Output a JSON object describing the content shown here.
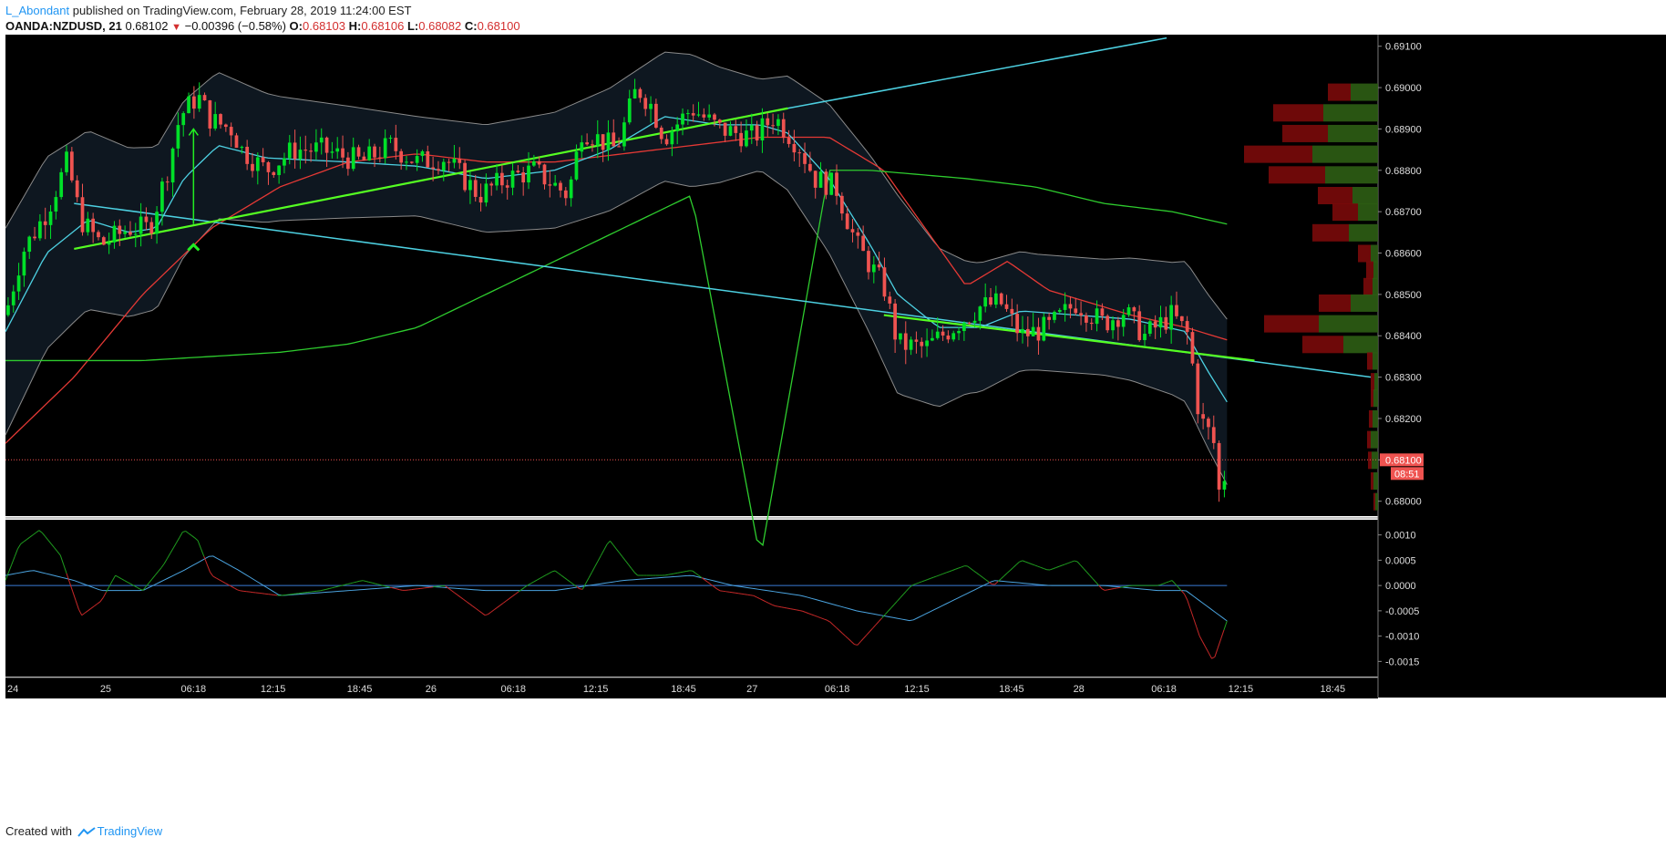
{
  "header": {
    "author": "L_Abondant",
    "published": "published on TradingView.com, February 28, 2019 11:24:00 EST",
    "symbol": "OANDA:NZDUSD, 21",
    "last": "0.68102",
    "change": "−0.00396 (−0.58%)",
    "o_label": "O:",
    "o": "0.68103",
    "h_label": "H:",
    "h": "0.68106",
    "l_label": "L:",
    "l": "0.68082",
    "c_label": "C:",
    "c": "0.68100"
  },
  "footer": {
    "created_with": "Created with",
    "brand": "TradingView"
  },
  "colors": {
    "up": "#00e028",
    "down": "#ef5350",
    "ma_red": "#e53935",
    "ma_green": "#2ecc2e",
    "ma_cyan": "#4dd0e1",
    "trend_green": "#55ff22",
    "trend_cyan": "#4dd0e1",
    "macd_blue": "#4aa3df"
  },
  "chart_data": {
    "type": "candlestick",
    "price_axis": {
      "ticks": [
        0.691,
        0.69,
        0.689,
        0.688,
        0.687,
        0.686,
        0.685,
        0.684,
        0.683,
        0.682,
        0.681,
        0.68
      ],
      "tick_labels": [
        "0.69100",
        "0.69000",
        "0.68900",
        "0.68800",
        "0.68700",
        "0.68600",
        "0.68500",
        "0.68400",
        "0.68300",
        "0.68200",
        "0.68100",
        "0.68000"
      ],
      "ylim": [
        0.67964,
        0.69128
      ]
    },
    "time_axis": {
      "labels": [
        "24",
        "25",
        "06:18",
        "12:15",
        "18:45",
        "26",
        "06:18",
        "12:15",
        "18:45",
        "27",
        "06:18",
        "12:15",
        "18:45",
        "28",
        "06:18",
        "12:15",
        "18:45"
      ],
      "label_positions": [
        0,
        0.073,
        0.137,
        0.195,
        0.258,
        0.31,
        0.37,
        0.43,
        0.494,
        0.544,
        0.606,
        0.664,
        0.733,
        0.782,
        0.844,
        0.9,
        0.967
      ]
    },
    "last_price": {
      "value": 0.681,
      "label": "0.68100",
      "countdown": "08:51"
    },
    "anchors": [
      [
        0.0,
        0.6845
      ],
      [
        0.012,
        0.686
      ],
      [
        0.03,
        0.687
      ],
      [
        0.045,
        0.6882
      ],
      [
        0.055,
        0.6868
      ],
      [
        0.07,
        0.6862
      ],
      [
        0.09,
        0.6866
      ],
      [
        0.105,
        0.6866
      ],
      [
        0.118,
        0.688
      ],
      [
        0.127,
        0.6893
      ],
      [
        0.14,
        0.6898
      ],
      [
        0.15,
        0.6892
      ],
      [
        0.165,
        0.689
      ],
      [
        0.172,
        0.6885
      ],
      [
        0.19,
        0.688
      ],
      [
        0.21,
        0.6885
      ],
      [
        0.23,
        0.6885
      ],
      [
        0.26,
        0.6882
      ],
      [
        0.28,
        0.6886
      ],
      [
        0.3,
        0.6882
      ],
      [
        0.32,
        0.6883
      ],
      [
        0.345,
        0.6874
      ],
      [
        0.365,
        0.6878
      ],
      [
        0.385,
        0.688
      ],
      [
        0.41,
        0.6874
      ],
      [
        0.42,
        0.689
      ],
      [
        0.445,
        0.6885
      ],
      [
        0.46,
        0.69
      ],
      [
        0.47,
        0.6896
      ],
      [
        0.48,
        0.6888
      ],
      [
        0.5,
        0.6895
      ],
      [
        0.52,
        0.689
      ],
      [
        0.545,
        0.6888
      ],
      [
        0.56,
        0.6893
      ],
      [
        0.578,
        0.6886
      ],
      [
        0.59,
        0.6878
      ],
      [
        0.605,
        0.6876
      ],
      [
        0.62,
        0.6862
      ],
      [
        0.64,
        0.6852
      ],
      [
        0.65,
        0.6838
      ],
      [
        0.67,
        0.6837
      ],
      [
        0.69,
        0.6842
      ],
      [
        0.71,
        0.6847
      ],
      [
        0.725,
        0.6848
      ],
      [
        0.74,
        0.684
      ],
      [
        0.76,
        0.6842
      ],
      [
        0.78,
        0.6848
      ],
      [
        0.8,
        0.6843
      ],
      [
        0.815,
        0.6846
      ],
      [
        0.83,
        0.684
      ],
      [
        0.85,
        0.6845
      ],
      [
        0.862,
        0.684
      ],
      [
        0.87,
        0.682
      ],
      [
        0.88,
        0.6815
      ],
      [
        0.885,
        0.68
      ],
      [
        0.89,
        0.681
      ]
    ],
    "num_candles": 230,
    "moving_averages": [
      {
        "color_key": "ma_red",
        "points": [
          [
            0,
            0.6814
          ],
          [
            0.05,
            0.683
          ],
          [
            0.1,
            0.685
          ],
          [
            0.15,
            0.6866
          ],
          [
            0.2,
            0.6876
          ],
          [
            0.25,
            0.6882
          ],
          [
            0.3,
            0.6884
          ],
          [
            0.35,
            0.6882
          ],
          [
            0.4,
            0.6882
          ],
          [
            0.45,
            0.6884
          ],
          [
            0.5,
            0.6886
          ],
          [
            0.55,
            0.6888
          ],
          [
            0.6,
            0.6888
          ],
          [
            0.64,
            0.688
          ],
          [
            0.67,
            0.6866
          ],
          [
            0.7,
            0.6852
          ],
          [
            0.73,
            0.6858
          ],
          [
            0.76,
            0.6851
          ],
          [
            0.79,
            0.6848
          ],
          [
            0.82,
            0.6845
          ],
          [
            0.86,
            0.6842
          ],
          [
            0.89,
            0.6839
          ]
        ]
      },
      {
        "color_key": "ma_green",
        "points": [
          [
            0,
            0.6834
          ],
          [
            0.1,
            0.6834
          ],
          [
            0.2,
            0.6836
          ],
          [
            0.25,
            0.6838
          ],
          [
            0.3,
            0.6842
          ],
          [
            0.35,
            0.685
          ],
          [
            0.4,
            0.6858
          ],
          [
            0.45,
            0.6866
          ],
          [
            0.5,
            0.6874
          ],
          [
            0.55,
            0.6786
          ],
          [
            0.6,
            0.688
          ],
          [
            0.63,
            0.688
          ],
          [
            0.7,
            0.6878
          ],
          [
            0.75,
            0.6876
          ],
          [
            0.8,
            0.6872
          ],
          [
            0.85,
            0.687
          ],
          [
            0.89,
            0.6867
          ]
        ]
      },
      {
        "color_key": "ma_cyan",
        "points": [
          [
            0,
            0.6841
          ],
          [
            0.03,
            0.686
          ],
          [
            0.06,
            0.6868
          ],
          [
            0.09,
            0.6865
          ],
          [
            0.11,
            0.6866
          ],
          [
            0.13,
            0.6878
          ],
          [
            0.155,
            0.6886
          ],
          [
            0.19,
            0.6883
          ],
          [
            0.25,
            0.6882
          ],
          [
            0.3,
            0.6881
          ],
          [
            0.35,
            0.6878
          ],
          [
            0.4,
            0.688
          ],
          [
            0.44,
            0.6885
          ],
          [
            0.48,
            0.6893
          ],
          [
            0.52,
            0.6891
          ],
          [
            0.55,
            0.6891
          ],
          [
            0.57,
            0.6889
          ],
          [
            0.6,
            0.6878
          ],
          [
            0.63,
            0.6862
          ],
          [
            0.65,
            0.685
          ],
          [
            0.68,
            0.6842
          ],
          [
            0.71,
            0.6842
          ],
          [
            0.74,
            0.6846
          ],
          [
            0.78,
            0.6845
          ],
          [
            0.82,
            0.6844
          ],
          [
            0.86,
            0.6841
          ],
          [
            0.875,
            0.6832
          ],
          [
            0.89,
            0.6824
          ]
        ]
      }
    ],
    "bollinger": {
      "width": [
        [
          0,
          0.0025
        ],
        [
          0.05,
          0.0022
        ],
        [
          0.1,
          0.002
        ],
        [
          0.15,
          0.0018
        ],
        [
          0.2,
          0.0015
        ],
        [
          0.3,
          0.0012
        ],
        [
          0.4,
          0.0014
        ],
        [
          0.45,
          0.0015
        ],
        [
          0.5,
          0.0016
        ],
        [
          0.55,
          0.0011
        ],
        [
          0.6,
          0.0018
        ],
        [
          0.65,
          0.0024
        ],
        [
          0.7,
          0.0016
        ],
        [
          0.75,
          0.0014
        ],
        [
          0.8,
          0.0014
        ],
        [
          0.85,
          0.0016
        ],
        [
          0.89,
          0.002
        ]
      ]
    },
    "trendlines": [
      {
        "color_key": "trend_cyan",
        "points": [
          [
            0.05,
            0.6872
          ],
          [
            0.995,
            0.683
          ]
        ]
      },
      {
        "color_key": "trend_cyan",
        "points": [
          [
            0.57,
            0.6895
          ],
          [
            0.846,
            0.6912
          ]
        ]
      },
      {
        "color_key": "trend_green",
        "points": [
          [
            0.05,
            0.6861
          ],
          [
            0.57,
            0.6895
          ]
        ]
      },
      {
        "color_key": "trend_green",
        "points": [
          [
            0.64,
            0.6845
          ],
          [
            0.91,
            0.6834
          ]
        ]
      }
    ],
    "arrow": {
      "x": 0.137,
      "from": 0.6867,
      "to": 0.689
    },
    "volume_profile": [
      [
        0.6899,
        30,
        25
      ],
      [
        0.6894,
        60,
        55
      ],
      [
        0.6889,
        55,
        50
      ],
      [
        0.6884,
        72,
        75
      ],
      [
        0.6879,
        58,
        62
      ],
      [
        0.6874,
        28,
        38
      ],
      [
        0.687,
        22,
        28
      ],
      [
        0.6865,
        32,
        40
      ],
      [
        0.686,
        8,
        14
      ],
      [
        0.6856,
        5,
        8
      ],
      [
        0.6852,
        6,
        10
      ],
      [
        0.6848,
        30,
        35
      ],
      [
        0.6843,
        65,
        60
      ],
      [
        0.6838,
        38,
        45
      ],
      [
        0.6834,
        6,
        6
      ],
      [
        0.6829,
        4,
        4
      ],
      [
        0.6825,
        5,
        3
      ],
      [
        0.682,
        6,
        4
      ],
      [
        0.6815,
        8,
        4
      ],
      [
        0.681,
        7,
        4
      ],
      [
        0.6805,
        5,
        3
      ],
      [
        0.68,
        3,
        2
      ]
    ],
    "macd": {
      "ticks": [
        0.001,
        0.0005,
        0.0,
        -0.0005,
        -0.001,
        -0.0015
      ],
      "tick_labels": [
        "0.0010",
        "0.0005",
        "0.0000",
        "-0.0005",
        "-0.0010",
        "-0.0015"
      ],
      "ylim": [
        -0.0018,
        0.0013
      ],
      "signal_points": [
        [
          0,
          0.0002
        ],
        [
          0.02,
          0.0003
        ],
        [
          0.05,
          0.0001
        ],
        [
          0.07,
          -0.0001
        ],
        [
          0.1,
          -0.0001
        ],
        [
          0.13,
          0.0003
        ],
        [
          0.15,
          0.0006
        ],
        [
          0.17,
          0.0003
        ],
        [
          0.2,
          -0.0002
        ],
        [
          0.25,
          -0.0001
        ],
        [
          0.3,
          0.0
        ],
        [
          0.35,
          -0.0001
        ],
        [
          0.4,
          -0.0001
        ],
        [
          0.45,
          0.0001
        ],
        [
          0.5,
          0.0002
        ],
        [
          0.53,
          0.0
        ],
        [
          0.58,
          -0.0002
        ],
        [
          0.62,
          -0.0005
        ],
        [
          0.66,
          -0.0007
        ],
        [
          0.69,
          -0.0003
        ],
        [
          0.72,
          0.0001
        ],
        [
          0.76,
          0.0
        ],
        [
          0.8,
          0.0
        ],
        [
          0.84,
          -0.0001
        ],
        [
          0.86,
          -0.0001
        ],
        [
          0.875,
          -0.0004
        ],
        [
          0.89,
          -0.0007
        ]
      ],
      "macd_points": [
        [
          0,
          0.0001
        ],
        [
          0.01,
          0.0008
        ],
        [
          0.025,
          0.0011
        ],
        [
          0.04,
          0.0006
        ],
        [
          0.055,
          -0.0006
        ],
        [
          0.07,
          -0.0003
        ],
        [
          0.08,
          0.0002
        ],
        [
          0.1,
          -0.0001
        ],
        [
          0.115,
          0.0004
        ],
        [
          0.13,
          0.0011
        ],
        [
          0.14,
          0.0009
        ],
        [
          0.15,
          0.0002
        ],
        [
          0.17,
          -0.0001
        ],
        [
          0.2,
          -0.0002
        ],
        [
          0.23,
          -0.0001
        ],
        [
          0.26,
          0.0001
        ],
        [
          0.29,
          -0.0001
        ],
        [
          0.32,
          0.0
        ],
        [
          0.35,
          -0.0006
        ],
        [
          0.38,
          0.0
        ],
        [
          0.4,
          0.0003
        ],
        [
          0.42,
          -0.0001
        ],
        [
          0.44,
          0.0009
        ],
        [
          0.46,
          0.0002
        ],
        [
          0.48,
          0.0002
        ],
        [
          0.5,
          0.0003
        ],
        [
          0.52,
          -0.0001
        ],
        [
          0.545,
          -0.0002
        ],
        [
          0.56,
          -0.0004
        ],
        [
          0.58,
          -0.0005
        ],
        [
          0.6,
          -0.0007
        ],
        [
          0.62,
          -0.0012
        ],
        [
          0.64,
          -0.0006
        ],
        [
          0.66,
          0.0
        ],
        [
          0.68,
          0.0002
        ],
        [
          0.7,
          0.0004
        ],
        [
          0.72,
          0.0
        ],
        [
          0.74,
          0.0005
        ],
        [
          0.76,
          0.0003
        ],
        [
          0.78,
          0.0005
        ],
        [
          0.8,
          -0.0001
        ],
        [
          0.82,
          0.0
        ],
        [
          0.84,
          0.0
        ],
        [
          0.85,
          0.0001
        ],
        [
          0.86,
          -0.0002
        ],
        [
          0.87,
          -0.001
        ],
        [
          0.88,
          -0.0015
        ],
        [
          0.89,
          -0.0007
        ]
      ],
      "zero_line": 0.0
    }
  }
}
